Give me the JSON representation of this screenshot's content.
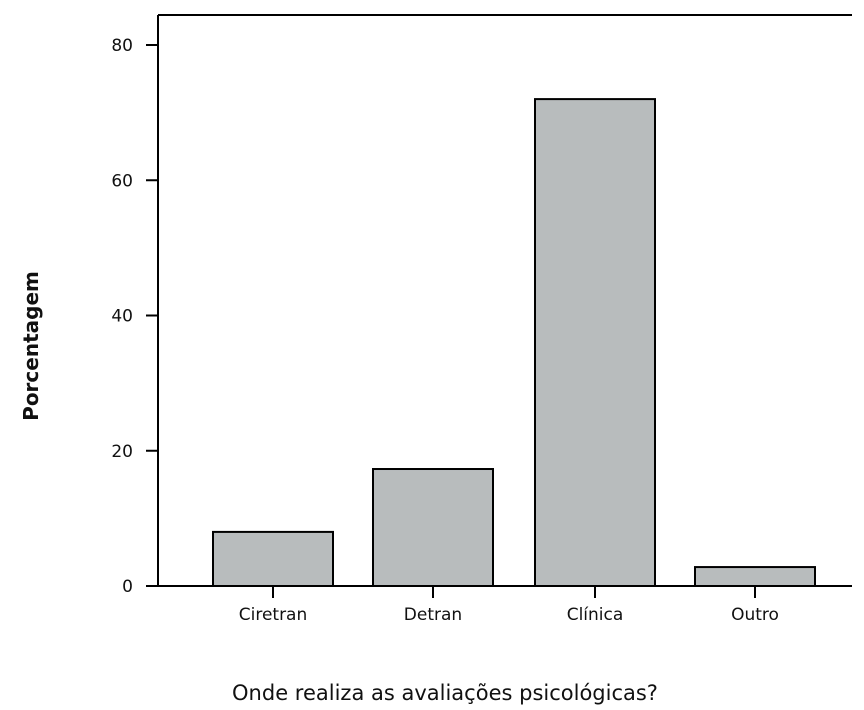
{
  "chart_data": {
    "type": "bar",
    "categories": [
      "Ciretran",
      "Detran",
      "Clínica",
      "Outro"
    ],
    "values": [
      8,
      17.3,
      72,
      2.8
    ],
    "xlabel": "Onde realiza as avaliações psicológicas?",
    "ylabel": "Porcentagem",
    "yticks": [
      0,
      20,
      40,
      60,
      80
    ],
    "ylim": [
      0,
      84.5
    ],
    "grid": false,
    "bar_color": "#b8bcbd",
    "bar_edge_color": "#000000"
  }
}
